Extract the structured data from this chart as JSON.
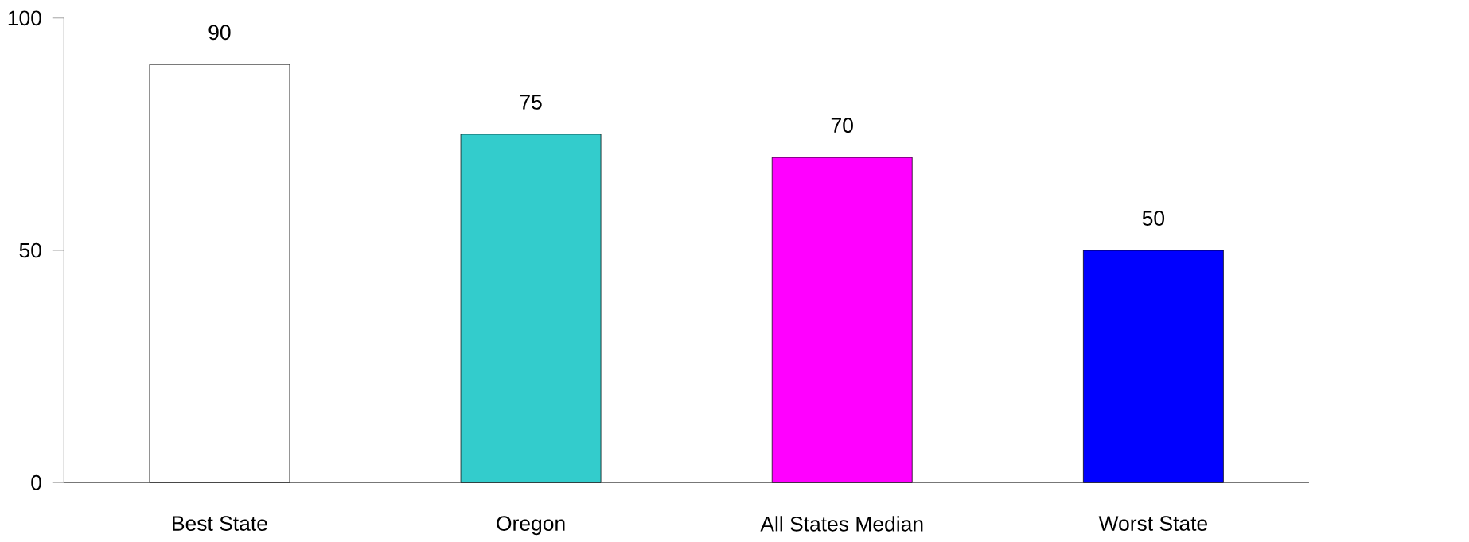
{
  "chart_data": {
    "type": "bar",
    "categories": [
      "Best State",
      "Oregon",
      "All States Median",
      "Worst State"
    ],
    "values": [
      90,
      75,
      70,
      50
    ],
    "colors": [
      "#ffffff",
      "#33cccc",
      "#ff00ff",
      "#0000ff"
    ],
    "ylim": [
      0,
      100
    ],
    "yticks": [
      0,
      50,
      100
    ],
    "data_labels": true
  }
}
